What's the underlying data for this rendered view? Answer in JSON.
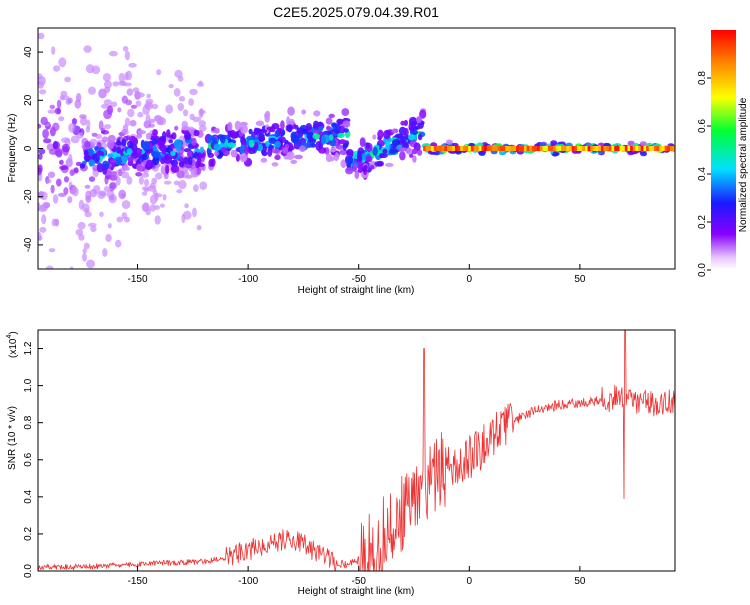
{
  "figure": {
    "title": "C2E5.2025.079.04.39.R01"
  },
  "chart_data": [
    {
      "type": "heatmap",
      "xlabel": "Height of straight line (km)",
      "ylabel": "Frequency (Hz)",
      "xlim": [
        -195,
        93
      ],
      "ylim": [
        -50,
        50
      ],
      "xticks": [
        -150,
        -100,
        -50,
        0,
        50
      ],
      "yticks": [
        -40,
        -20,
        0,
        20,
        40
      ],
      "colorbar": {
        "label": "Normalized spectral amplitude",
        "range": [
          0.0,
          1.0
        ],
        "ticks": [
          0.0,
          0.2,
          0.4,
          0.6,
          0.8
        ]
      },
      "tracks": [
        {
          "x_range": [
            -195,
            -150
          ],
          "center_hz": 0,
          "spread_hz": 50,
          "amplitude": 0.18
        },
        {
          "x_range": [
            -150,
            -120
          ],
          "center_hz": 0,
          "spread_hz": 30,
          "amplitude": 0.15
        },
        {
          "x_range": [
            -175,
            -55
          ],
          "center_hz": [
            -4,
            6
          ],
          "spread_hz": 10,
          "amplitude": 0.45
        },
        {
          "x_range": [
            -55,
            -20
          ],
          "center_hz": [
            -6,
            7
          ],
          "spread_hz": 9,
          "amplitude": 0.5
        },
        {
          "x_range": [
            -20,
            93
          ],
          "center_hz": 0,
          "spread_hz": 2,
          "amplitude": 0.9
        }
      ]
    },
    {
      "type": "line",
      "xlabel": "Height of straight line (km)",
      "ylabel": "SNR (10 * v/v)",
      "y_multiplier": "(x10",
      "y_multiplier_exp": "4",
      "xlim": [
        -195,
        93
      ],
      "ylim": [
        0,
        1.3
      ],
      "xticks": [
        -150,
        -100,
        -50,
        0,
        50
      ],
      "yticks": [
        0.0,
        0.2,
        0.4,
        0.6,
        0.8,
        1.0,
        1.2
      ],
      "series": [
        {
          "color": "#ee3333",
          "x": [
            -195,
            -175,
            -160,
            -140,
            -120,
            -110,
            -100,
            -95,
            -90,
            -85,
            -80,
            -75,
            -70,
            -65,
            -60,
            -55,
            -50,
            -45,
            -40,
            -35,
            -30,
            -25,
            -20,
            -15,
            -10,
            -5,
            0,
            5,
            10,
            15,
            20,
            25,
            30,
            35,
            40,
            45,
            50,
            55,
            60,
            65,
            70,
            75,
            80,
            85,
            93
          ],
          "y": [
            0.02,
            0.02,
            0.03,
            0.04,
            0.05,
            0.07,
            0.1,
            0.13,
            0.15,
            0.16,
            0.16,
            0.14,
            0.1,
            0.06,
            0.04,
            0.03,
            0.06,
            0.1,
            0.15,
            0.22,
            0.3,
            0.38,
            0.45,
            0.5,
            0.55,
            0.58,
            0.6,
            0.65,
            0.72,
            0.76,
            0.8,
            0.84,
            0.86,
            0.88,
            0.89,
            0.9,
            0.91,
            0.91,
            0.92,
            0.92,
            0.92,
            0.91,
            0.92,
            0.9,
            0.92
          ]
        }
      ],
      "spikes": [
        {
          "x": -20.5,
          "y": 1.2
        },
        {
          "x": 70.5,
          "y": 1.3
        },
        {
          "x": 70.0,
          "y": 0.39
        }
      ]
    }
  ]
}
